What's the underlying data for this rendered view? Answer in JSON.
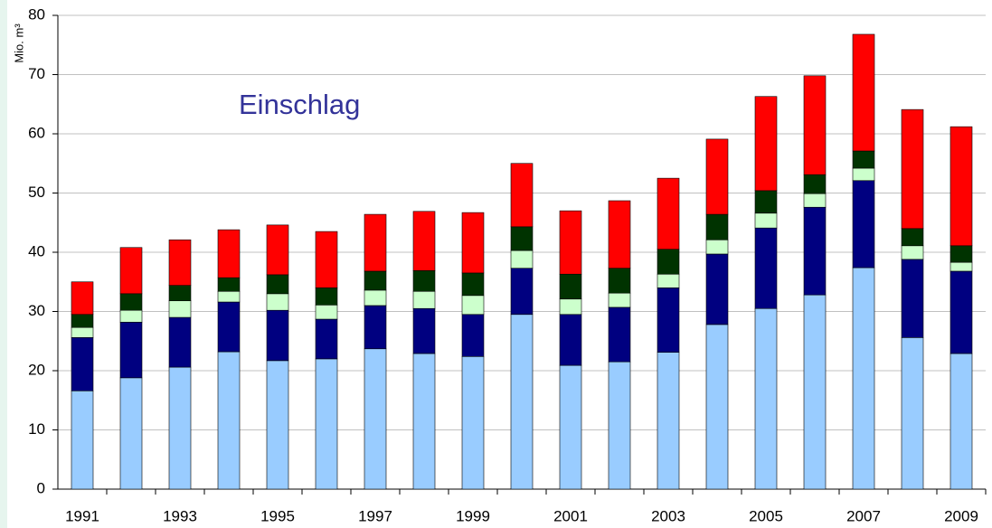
{
  "chart_data": {
    "type": "stacked_bar",
    "annotation": "Einschlag",
    "y_label": "Mio. m³",
    "categories": [
      "1991",
      null,
      "1993",
      null,
      "1995",
      null,
      "1997",
      null,
      "1999",
      null,
      "2001",
      null,
      "2003",
      null,
      "2005",
      null,
      "2007",
      null,
      "2009"
    ],
    "series": [
      {
        "color": "#99ccff",
        "values": [
          16.6,
          18.8,
          20.6,
          23.2,
          21.7,
          22.0,
          23.7,
          22.9,
          22.4,
          29.5,
          20.9,
          21.5,
          23.1,
          27.8,
          30.5,
          32.8,
          37.4,
          25.6,
          22.9
        ]
      },
      {
        "color": "#000080",
        "values": [
          9.0,
          9.4,
          8.4,
          8.4,
          8.5,
          6.7,
          7.3,
          7.6,
          7.1,
          7.8,
          8.6,
          9.2,
          10.9,
          11.9,
          13.6,
          14.8,
          14.7,
          13.2,
          13.9
        ]
      },
      {
        "color": "#ccffcc",
        "values": [
          1.7,
          2.0,
          2.8,
          1.8,
          2.8,
          2.4,
          2.6,
          2.9,
          3.2,
          3.0,
          2.6,
          2.4,
          2.3,
          2.4,
          2.5,
          2.3,
          2.1,
          2.3,
          1.5
        ]
      },
      {
        "color": "#003300",
        "values": [
          2.2,
          2.8,
          2.6,
          2.3,
          3.2,
          2.9,
          3.2,
          3.5,
          3.8,
          4.0,
          4.2,
          4.2,
          4.2,
          4.3,
          3.8,
          3.2,
          2.9,
          2.9,
          2.8
        ]
      },
      {
        "color": "#ff0000",
        "values": [
          5.5,
          7.8,
          7.7,
          8.1,
          8.4,
          9.5,
          9.6,
          10.0,
          10.2,
          10.7,
          10.7,
          11.4,
          12.0,
          12.7,
          15.9,
          16.7,
          19.7,
          20.1,
          20.1
        ]
      }
    ],
    "ylim": [
      0,
      80
    ],
    "yticks": [
      0,
      10,
      20,
      30,
      40,
      50,
      60,
      70,
      80
    ],
    "grid": true
  }
}
